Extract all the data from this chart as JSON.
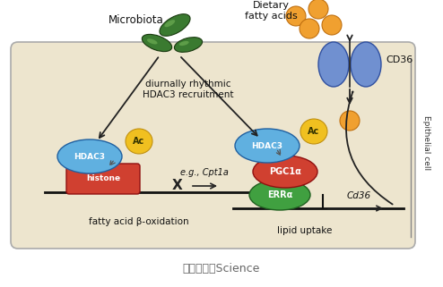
{
  "title_bottom": "图片来源：Science",
  "microbiota_label": "Microbiota",
  "dietary_label": "Dietary\nfatty acids",
  "cd36_label": "CD36",
  "epithelial_label": "Epithelial cell",
  "recruitment_label": "diurnally rhythmic\nHDAC3 recruitment",
  "hdac3_left_label": "HDAC3",
  "hdac3_right_label": "HDAC3",
  "ac_label": "Ac",
  "histone_label": "histone",
  "pgc1a_label": "PGC1α",
  "erra_label": "ERRα",
  "fatty_acid_label": "fatty acid β-oxidation",
  "lipid_uptake_label": "lipid uptake",
  "cpt1a_label": "e.g., Cpt1a",
  "cd36_gene_label": "Cd36",
  "microbiota_color": "#3a7a30",
  "dietary_color": "#f0a030",
  "cd36_protein_color": "#6080c0",
  "hdac3_color": "#60b0e0",
  "ac_color": "#f0c020",
  "histone_color": "#d04030",
  "pgc1a_color": "#d04030",
  "erra_color": "#40a040",
  "arrow_color": "#222222",
  "cell_bg": "#ede5ce",
  "page_bg": "#ffffff"
}
